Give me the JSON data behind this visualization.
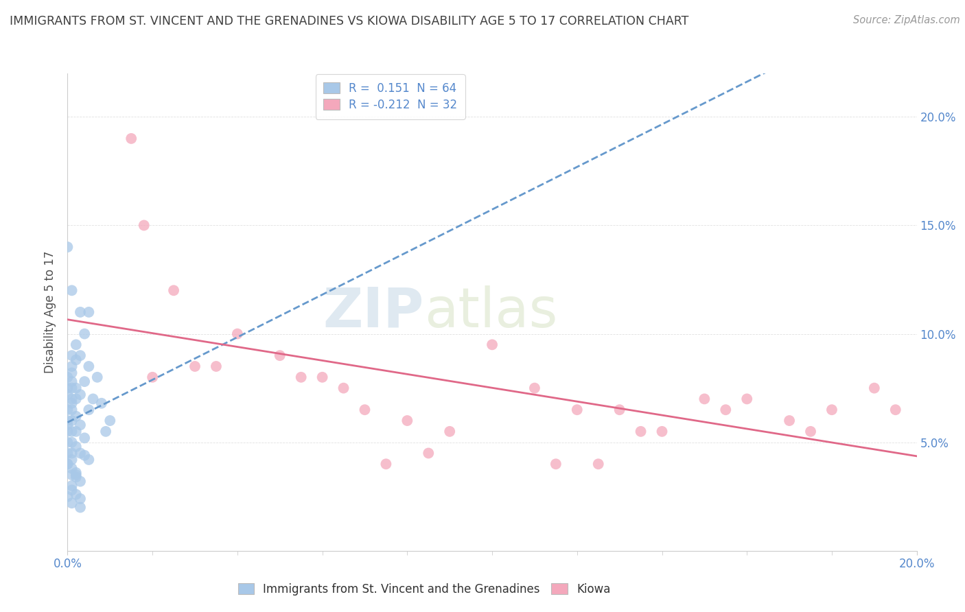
{
  "title": "IMMIGRANTS FROM ST. VINCENT AND THE GRENADINES VS KIOWA DISABILITY AGE 5 TO 17 CORRELATION CHART",
  "source": "Source: ZipAtlas.com",
  "ylabel": "Disability Age 5 to 17",
  "xlim": [
    0.0,
    0.2
  ],
  "ylim": [
    0.0,
    0.22
  ],
  "yticks": [
    0.05,
    0.1,
    0.15,
    0.2
  ],
  "ytick_labels": [
    "5.0%",
    "10.0%",
    "15.0%",
    "20.0%"
  ],
  "xtick_left_label": "0.0%",
  "xtick_right_label": "20.0%",
  "watermark_zip": "ZIP",
  "watermark_atlas": "atlas",
  "legend_entries": [
    {
      "label_r": "R =  0.151",
      "label_n": "N = 64",
      "color": "#a8c8e8"
    },
    {
      "label_r": "R = -0.212",
      "label_n": "N = 32",
      "color": "#f4a8bc"
    }
  ],
  "series": [
    {
      "name": "Immigrants from St. Vincent and the Grenadines",
      "color": "#a8c8e8",
      "trend_color": "#6699cc",
      "trend_style": "--",
      "x": [
        0.0,
        0.0,
        0.0,
        0.0,
        0.0,
        0.0,
        0.0,
        0.0,
        0.0,
        0.0,
        0.001,
        0.001,
        0.001,
        0.001,
        0.001,
        0.001,
        0.001,
        0.001,
        0.001,
        0.001,
        0.001,
        0.001,
        0.001,
        0.001,
        0.001,
        0.001,
        0.002,
        0.002,
        0.002,
        0.002,
        0.002,
        0.002,
        0.002,
        0.002,
        0.003,
        0.003,
        0.003,
        0.003,
        0.003,
        0.004,
        0.004,
        0.004,
        0.005,
        0.005,
        0.005,
        0.006,
        0.007,
        0.008,
        0.009,
        0.01,
        0.0,
        0.0,
        0.001,
        0.001,
        0.002,
        0.002,
        0.003,
        0.003,
        0.004,
        0.005,
        0.0,
        0.001,
        0.002,
        0.003
      ],
      "y": [
        0.08,
        0.075,
        0.072,
        0.065,
        0.06,
        0.058,
        0.055,
        0.05,
        0.045,
        0.04,
        0.09,
        0.085,
        0.082,
        0.078,
        0.075,
        0.07,
        0.068,
        0.065,
        0.06,
        0.055,
        0.05,
        0.045,
        0.042,
        0.038,
        0.035,
        0.03,
        0.095,
        0.088,
        0.075,
        0.07,
        0.062,
        0.055,
        0.048,
        0.035,
        0.11,
        0.09,
        0.072,
        0.058,
        0.045,
        0.1,
        0.078,
        0.052,
        0.085,
        0.065,
        0.042,
        0.07,
        0.08,
        0.068,
        0.055,
        0.06,
        0.14,
        0.025,
        0.12,
        0.022,
        0.034,
        0.026,
        0.032,
        0.024,
        0.044,
        0.11,
        0.04,
        0.028,
        0.036,
        0.02
      ]
    },
    {
      "name": "Kiowa",
      "color": "#f4a8bc",
      "trend_color": "#e06888",
      "trend_style": "-",
      "x": [
        0.015,
        0.018,
        0.025,
        0.03,
        0.035,
        0.04,
        0.05,
        0.055,
        0.06,
        0.065,
        0.07,
        0.075,
        0.08,
        0.085,
        0.09,
        0.1,
        0.11,
        0.115,
        0.12,
        0.125,
        0.13,
        0.135,
        0.14,
        0.15,
        0.155,
        0.16,
        0.17,
        0.175,
        0.18,
        0.19,
        0.195,
        0.02
      ],
      "y": [
        0.19,
        0.15,
        0.12,
        0.085,
        0.085,
        0.1,
        0.09,
        0.08,
        0.08,
        0.075,
        0.065,
        0.04,
        0.06,
        0.045,
        0.055,
        0.095,
        0.075,
        0.04,
        0.065,
        0.04,
        0.065,
        0.055,
        0.055,
        0.07,
        0.065,
        0.07,
        0.06,
        0.055,
        0.065,
        0.075,
        0.065,
        0.08
      ]
    }
  ],
  "background_color": "#ffffff",
  "grid_color": "#e0e0e0",
  "title_color": "#404040",
  "axis_color": "#5588cc",
  "source_color": "#999999"
}
